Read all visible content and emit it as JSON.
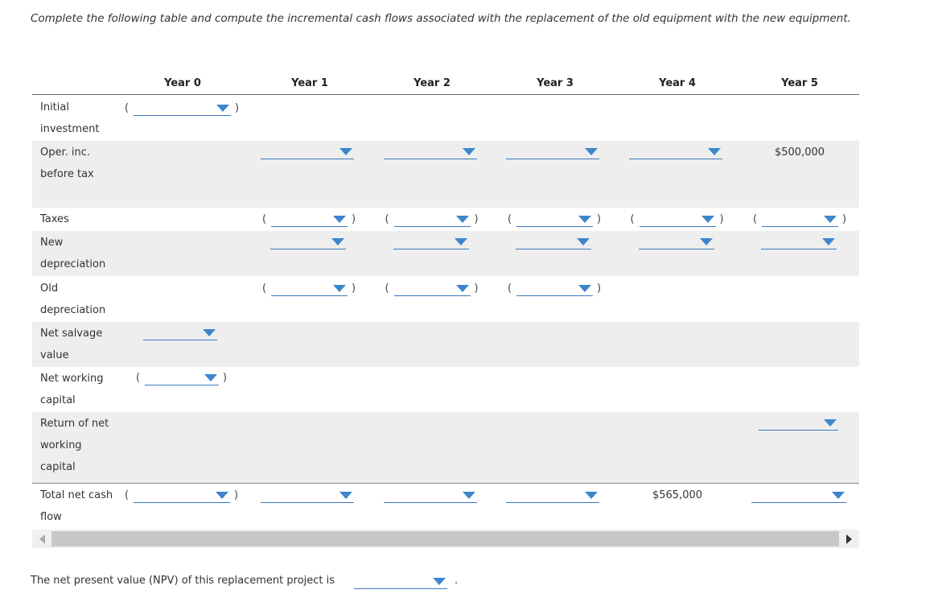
{
  "instruction": "Complete the following table and compute the incremental cash flows associated with the replacement of the old equipment with the new equipment.",
  "table": {
    "headers": [
      "Year 0",
      "Year 1",
      "Year 2",
      "Year 3",
      "Year 4",
      "Year 5"
    ],
    "rows": [
      {
        "label": "Initial investment"
      },
      {
        "label": "Oper. inc. before tax",
        "year5": "$500,000"
      },
      {
        "label": "Taxes"
      },
      {
        "label": "New depreciation"
      },
      {
        "label": "Old depreciation"
      },
      {
        "label": "Net salvage value"
      },
      {
        "label": "Net working capital"
      },
      {
        "label": "Return of net working capital"
      },
      {
        "label": "Total net cash flow",
        "year4": "$565,000"
      }
    ]
  },
  "npv_prompt": "The net present value (NPV) of this replacement project is",
  "npv_end": "."
}
